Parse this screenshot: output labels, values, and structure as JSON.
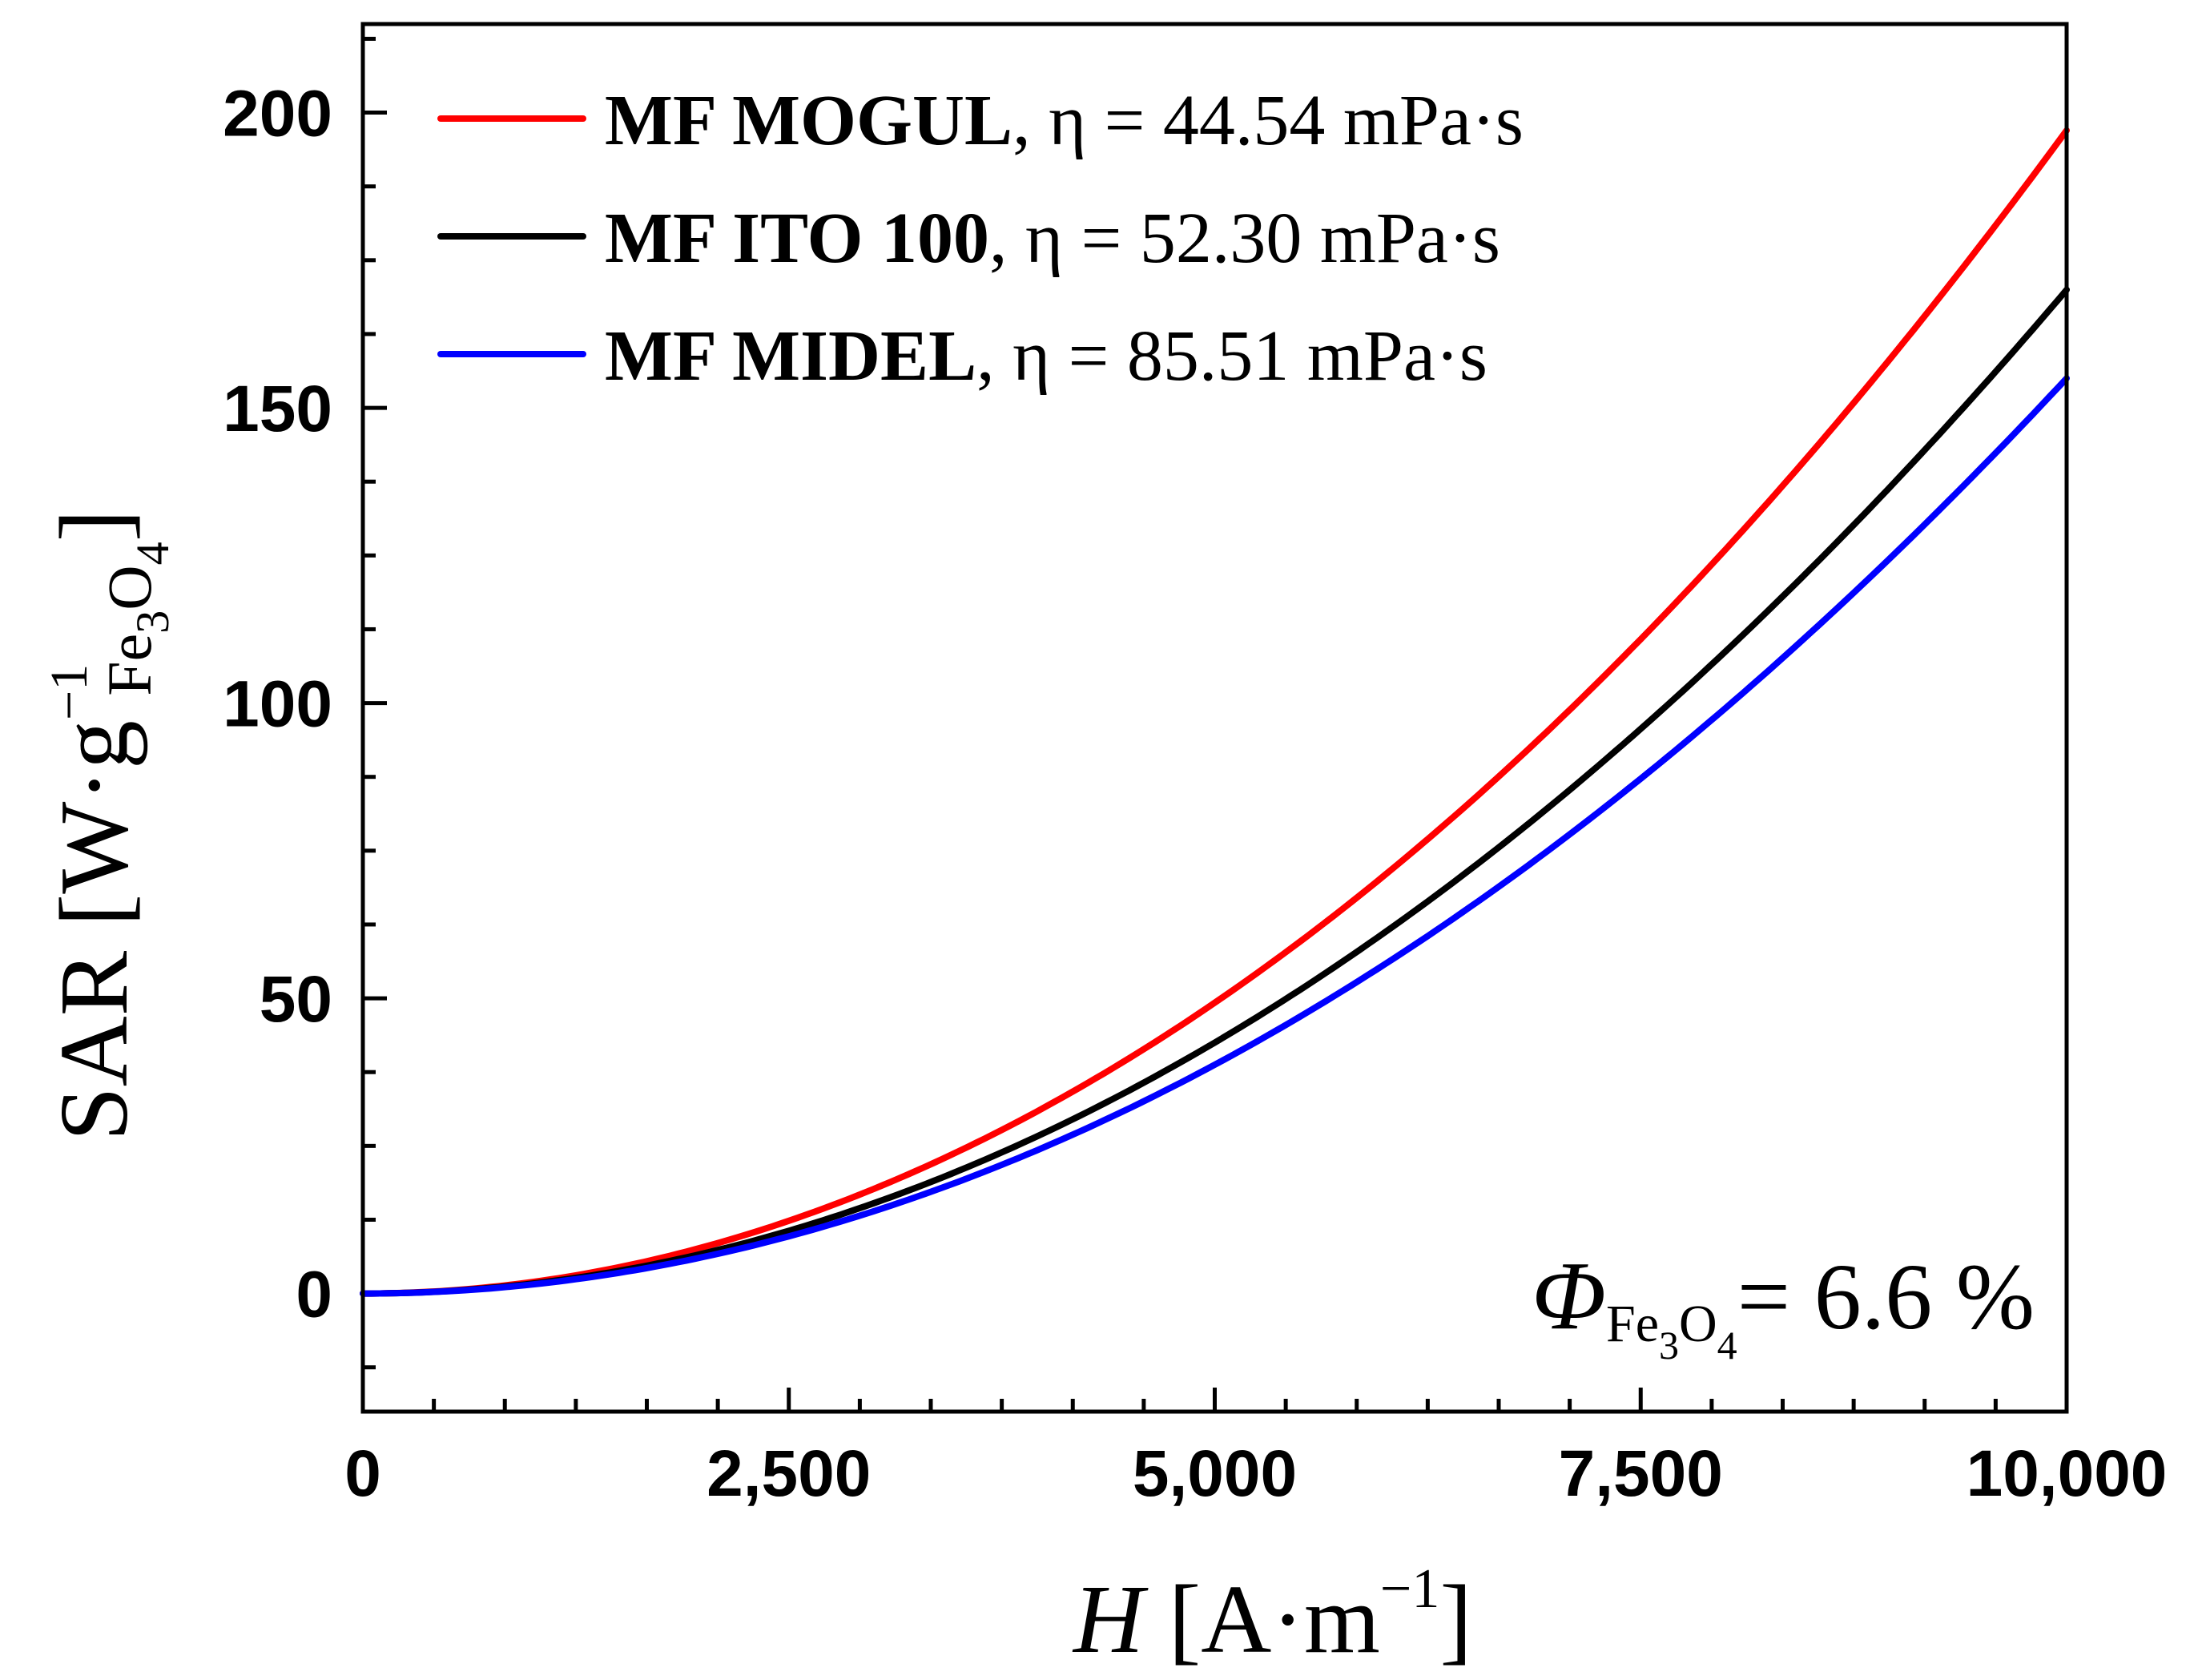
{
  "chart_data": {
    "type": "line",
    "xlabel": {
      "symbol": "H",
      "unit_open": " [A·m",
      "unit_exp": "−1",
      "unit_close": "]"
    },
    "ylabel": {
      "prefix": "SAR [W·g",
      "sub": "Fe",
      "sub_sub": "3",
      "sub2": "O",
      "sub_sub2": "4",
      "exp": "−1",
      "close": "]"
    },
    "xlim": [
      0,
      10000
    ],
    "ylim": [
      -20,
      215
    ],
    "x_ticks": [
      0,
      2500,
      5000,
      7500,
      10000
    ],
    "x_tick_labels": [
      "0",
      "2,500",
      "5,000",
      "7,500",
      "10,000"
    ],
    "x_minor_ticks": [
      416.7,
      833.3,
      1250,
      1666.7,
      2083.3,
      2916.7,
      3333.3,
      3750,
      4166.7,
      4583.3,
      5416.7,
      5833.3,
      6250,
      6666.7,
      7083.3,
      7916.7,
      8333.3,
      8750,
      9166.7,
      9583.3
    ],
    "y_ticks": [
      0,
      50,
      100,
      150,
      200
    ],
    "y_tick_labels": [
      "0",
      "50",
      "100",
      "150",
      "200"
    ],
    "y_minor_ticks": [
      -12.5,
      12.5,
      25,
      37.5,
      62.5,
      75,
      87.5,
      112.5,
      125,
      137.5,
      162.5,
      175,
      187.5,
      212.5
    ],
    "series": [
      {
        "name": "MF MOGUL",
        "viscosity": ", η = 44.54 mPa·s",
        "color": "#ff0000",
        "x": [
          0,
          1000,
          2000,
          3000,
          4000,
          5000,
          6000,
          7000,
          8000,
          9000,
          10000
        ],
        "values": [
          0,
          1.97,
          7.88,
          17.73,
          31.52,
          49.25,
          70.92,
          96.53,
          126.08,
          159.57,
          197.0
        ]
      },
      {
        "name": "MF ITO 100",
        "viscosity": ", η = 52.30 mPa·s",
        "color": "#000000",
        "x": [
          0,
          1000,
          2000,
          3000,
          4000,
          5000,
          6000,
          7000,
          8000,
          9000,
          10000
        ],
        "values": [
          0,
          1.7,
          6.8,
          15.3,
          27.2,
          42.5,
          61.2,
          83.3,
          108.8,
          137.7,
          170.0
        ]
      },
      {
        "name": "MF MIDEL",
        "viscosity": ", η = 85.51 mPa·s",
        "color": "#0000ff",
        "x": [
          0,
          1000,
          2000,
          3000,
          4000,
          5000,
          6000,
          7000,
          8000,
          9000,
          10000
        ],
        "values": [
          0,
          1.55,
          6.2,
          13.95,
          24.8,
          38.75,
          55.8,
          75.95,
          99.2,
          125.55,
          155.0
        ]
      }
    ],
    "annotation": {
      "symbol": "Φ",
      "sub": "Fe",
      "sub_sub": "3",
      "sub2": "O",
      "sub_sub2": "4",
      "text": "= 6.6 %"
    },
    "legend_position": "top-left"
  }
}
